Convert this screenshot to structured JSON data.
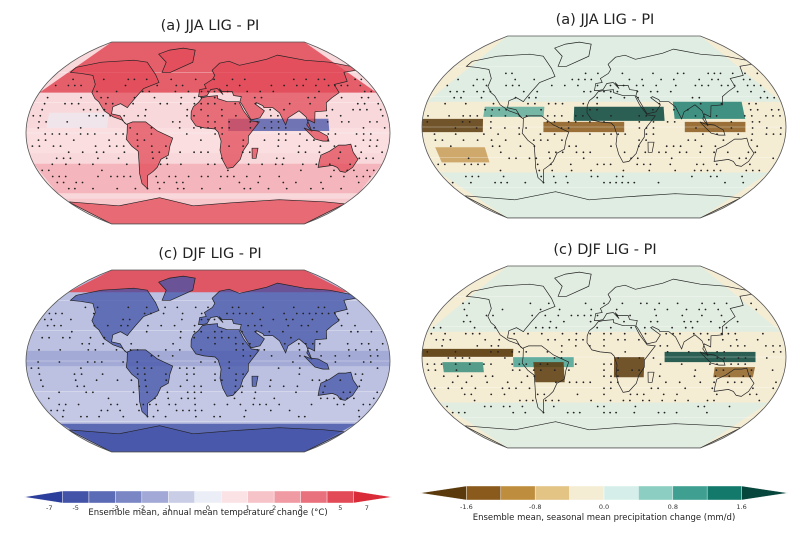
{
  "panels": [
    {
      "title": "(a) JJA LIG - PI"
    },
    {
      "title": "(a) JJA LIG - PI"
    },
    {
      "title": "(c) DJF LIG - PI"
    },
    {
      "title": "(c) DJF LIG - PI"
    }
  ],
  "colorbars": {
    "temperature": {
      "label": "Ensemble mean, annual mean temperature change (°C)",
      "ticks": [
        "-7",
        "-5",
        "-3",
        "-2",
        "-1",
        "0",
        "1",
        "2",
        "3",
        "5",
        "7"
      ],
      "colors": [
        "#2c3e9c",
        "#4353a8",
        "#5b6bb6",
        "#7b86c4",
        "#a2a9d6",
        "#c9cde6",
        "#eceef7",
        "#fbe3e5",
        "#f6c3c8",
        "#f09aa3",
        "#e9717d",
        "#e24a57",
        "#d92b38"
      ]
    },
    "precipitation": {
      "label": "Ensemble mean, seasonal mean precipitation change (mm/d)",
      "ticks": [
        "-1.6",
        "-0.8",
        "0.0",
        "0.8",
        "1.6"
      ],
      "colors": [
        "#5a3a0c",
        "#8a5a1c",
        "#bf8d3e",
        "#e3c485",
        "#f5ecd4",
        "#d6eee9",
        "#8ccfc2",
        "#3f9f90",
        "#137a6b",
        "#07463c"
      ]
    }
  }
}
